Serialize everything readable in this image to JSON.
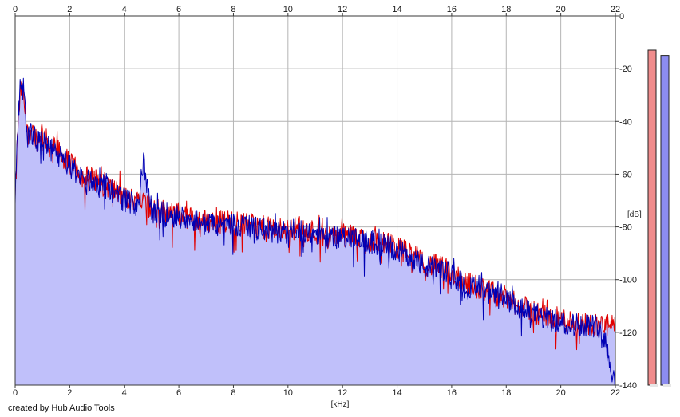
{
  "credit": "created by Hub Audio Tools",
  "colors": {
    "background": "#ffffff",
    "grid": "#b4b4b4",
    "frame": "#3a3a3a",
    "fill": "#c0c0fa",
    "left_channel": "#e00000",
    "right_channel": "#0000b4",
    "meter_left": "#f08c8c",
    "meter_right": "#8c8cf0"
  },
  "chart_data": {
    "type": "line",
    "xlabel": "[kHz]",
    "ylabel": "[dB]",
    "xlim": [
      0,
      22
    ],
    "ylim": [
      -140,
      0
    ],
    "x_ticks": [
      0,
      2,
      4,
      6,
      8,
      10,
      12,
      14,
      16,
      18,
      20,
      22
    ],
    "y_ticks": [
      0,
      -20,
      -40,
      -60,
      -80,
      -100,
      -120,
      -140
    ],
    "grid": true,
    "series": [
      {
        "channel": "left",
        "color": "#e00000",
        "x": [
          0.0,
          0.1,
          0.2,
          0.3,
          0.45,
          0.6,
          0.8,
          1.0,
          1.2,
          1.5,
          1.8,
          2.0,
          2.5,
          3.0,
          3.5,
          4.0,
          4.5,
          4.7,
          5.0,
          5.5,
          6.0,
          6.5,
          7.0,
          7.5,
          8.0,
          8.5,
          9.0,
          9.5,
          10.0,
          10.5,
          11.0,
          11.5,
          12.0,
          12.5,
          13.0,
          13.5,
          14.0,
          14.5,
          15.0,
          15.5,
          16.0,
          16.5,
          17.0,
          17.5,
          18.0,
          18.5,
          19.0,
          19.5,
          20.0,
          20.5,
          21.0,
          21.5,
          22.0
        ],
        "y": [
          -70,
          -42,
          -28,
          -30,
          -45,
          -42,
          -47,
          -43,
          -49,
          -50,
          -54,
          -56,
          -61,
          -62,
          -65,
          -69,
          -70,
          -68,
          -73,
          -74,
          -75,
          -77,
          -78,
          -78,
          -78,
          -79,
          -80,
          -81,
          -81,
          -80,
          -82,
          -84,
          -83,
          -84,
          -85,
          -86,
          -88,
          -90,
          -94,
          -95,
          -97,
          -101,
          -103,
          -105,
          -107,
          -110,
          -112,
          -114,
          -115,
          -116,
          -117,
          -117,
          -118
        ]
      },
      {
        "channel": "right",
        "color": "#0000b4",
        "x": [
          0.0,
          0.1,
          0.2,
          0.3,
          0.45,
          0.6,
          0.8,
          1.0,
          1.2,
          1.5,
          1.8,
          2.0,
          2.5,
          3.0,
          3.5,
          4.0,
          4.5,
          4.7,
          5.0,
          5.5,
          6.0,
          6.5,
          7.0,
          7.5,
          8.0,
          8.5,
          9.0,
          9.5,
          10.0,
          10.5,
          11.0,
          11.5,
          12.0,
          12.5,
          13.0,
          13.5,
          14.0,
          14.5,
          15.0,
          15.5,
          16.0,
          16.5,
          17.0,
          17.5,
          18.0,
          18.5,
          19.0,
          19.5,
          20.0,
          20.5,
          21.0,
          21.5,
          22.0
        ],
        "y": [
          -72,
          -40,
          -24,
          -27,
          -46,
          -44,
          -48,
          -46,
          -50,
          -52,
          -55,
          -57,
          -62,
          -63,
          -66,
          -70,
          -71,
          -55,
          -74,
          -75,
          -76,
          -77,
          -79,
          -79,
          -79,
          -80,
          -81,
          -82,
          -82,
          -81,
          -83,
          -84,
          -84,
          -85,
          -86,
          -87,
          -89,
          -91,
          -95,
          -96,
          -98,
          -102,
          -104,
          -106,
          -108,
          -111,
          -113,
          -115,
          -116,
          -117,
          -117,
          -118,
          -140
        ]
      }
    ],
    "meters": [
      {
        "channel": "left",
        "peak_db": -13
      },
      {
        "channel": "right",
        "peak_db": -15
      }
    ]
  }
}
